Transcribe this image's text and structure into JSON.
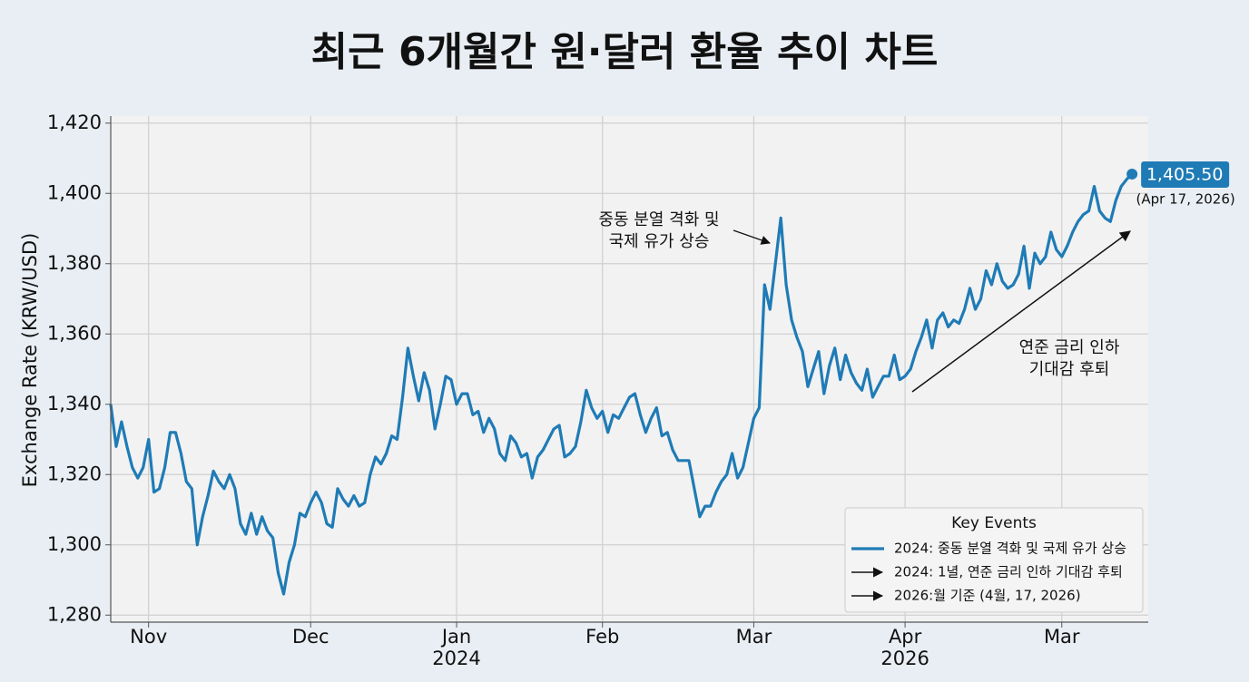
{
  "chart_data": {
    "type": "line",
    "title": "최근 6개월간 원·달러 환율 추이 차트",
    "y_label": "Exchange Rate (KRW/USD)",
    "color": "#1f7bb6",
    "grid": true,
    "xlim": [
      0,
      192
    ],
    "xticks": [
      {
        "value": 7,
        "label": "Nov"
      },
      {
        "value": 37,
        "label": "Dec"
      },
      {
        "value": 64,
        "label": "Jan",
        "year": "2024"
      },
      {
        "value": 91,
        "label": "Feb"
      },
      {
        "value": 119,
        "label": "Mar"
      },
      {
        "value": 147,
        "label": "Apr",
        "year": "2026"
      },
      {
        "value": 176,
        "label": "Mar"
      }
    ],
    "ylim": [
      1278,
      1422
    ],
    "yticks": [
      {
        "value": 1280,
        "label": "1,280"
      },
      {
        "value": 1300,
        "label": "1,300"
      },
      {
        "value": 1320,
        "label": "1,320"
      },
      {
        "value": 1340,
        "label": "1,340"
      },
      {
        "value": 1360,
        "label": "1,360"
      },
      {
        "value": 1380,
        "label": "1,380"
      },
      {
        "value": 1400,
        "label": "1,400"
      },
      {
        "value": 1420,
        "label": "1,420"
      }
    ],
    "values": [
      1340,
      1328,
      1335,
      1328,
      1322,
      1319,
      1322,
      1330,
      1315,
      1316,
      1322,
      1332,
      1332,
      1326,
      1318,
      1316,
      1300,
      1308,
      1314,
      1321,
      1318,
      1316,
      1320,
      1316,
      1306,
      1303,
      1309,
      1303,
      1308,
      1304,
      1302,
      1292,
      1286,
      1295,
      1300,
      1309,
      1308,
      1312,
      1315,
      1312,
      1306,
      1305,
      1316,
      1313,
      1311,
      1314,
      1311,
      1312,
      1320,
      1325,
      1323,
      1326,
      1331,
      1330,
      1342,
      1356,
      1348,
      1341,
      1349,
      1344,
      1333,
      1340,
      1348,
      1347,
      1340,
      1343,
      1343,
      1337,
      1338,
      1332,
      1336,
      1333,
      1326,
      1324,
      1331,
      1329,
      1325,
      1326,
      1319,
      1325,
      1327,
      1330,
      1333,
      1334,
      1325,
      1326,
      1328,
      1335,
      1344,
      1339,
      1336,
      1338,
      1332,
      1337,
      1336,
      1339,
      1342,
      1343,
      1337,
      1332,
      1336,
      1339,
      1331,
      1332,
      1327,
      1324,
      1324,
      1324,
      1316,
      1308,
      1311,
      1311,
      1315,
      1318,
      1320,
      1326,
      1319,
      1322,
      1329,
      1336,
      1339,
      1374,
      1367,
      1380,
      1393,
      1374,
      1364,
      1359,
      1355,
      1345,
      1350,
      1355,
      1343,
      1351,
      1356,
      1347,
      1354,
      1349,
      1346,
      1344,
      1350,
      1342,
      1345,
      1348,
      1348,
      1354,
      1347,
      1348,
      1350,
      1355,
      1359,
      1364,
      1356,
      1364,
      1366,
      1362,
      1364,
      1363,
      1367,
      1373,
      1367,
      1370,
      1378,
      1374,
      1380,
      1375,
      1373,
      1374,
      1377,
      1385,
      1373,
      1383,
      1380,
      1382,
      1389,
      1384,
      1382,
      1385,
      1389,
      1392,
      1394,
      1395,
      1402,
      1395,
      1393,
      1392,
      1398,
      1402,
      1404,
      1405.5
    ],
    "end_label": {
      "value_label": "1,405.50",
      "date": "(Apr 17, 2026)"
    },
    "annotations": [
      {
        "lines": [
          "중동 분열 격화 및",
          "국제 유가 상승"
        ]
      },
      {
        "lines": [
          "연준 금리 인하",
          "기대감 후퇴"
        ]
      }
    ],
    "legend": {
      "title": "Key Events",
      "position": "lower right",
      "items": [
        {
          "marker": "line",
          "label": "2024: 중동 분열 격화 및 국제 유가 상승"
        },
        {
          "marker": "arrow",
          "label": "2024: 1녈, 연준 금리 인하 기대감 후퇴"
        },
        {
          "marker": "arrow",
          "label": "2026:월 기준 (4월, 17, 2026)"
        }
      ]
    }
  }
}
